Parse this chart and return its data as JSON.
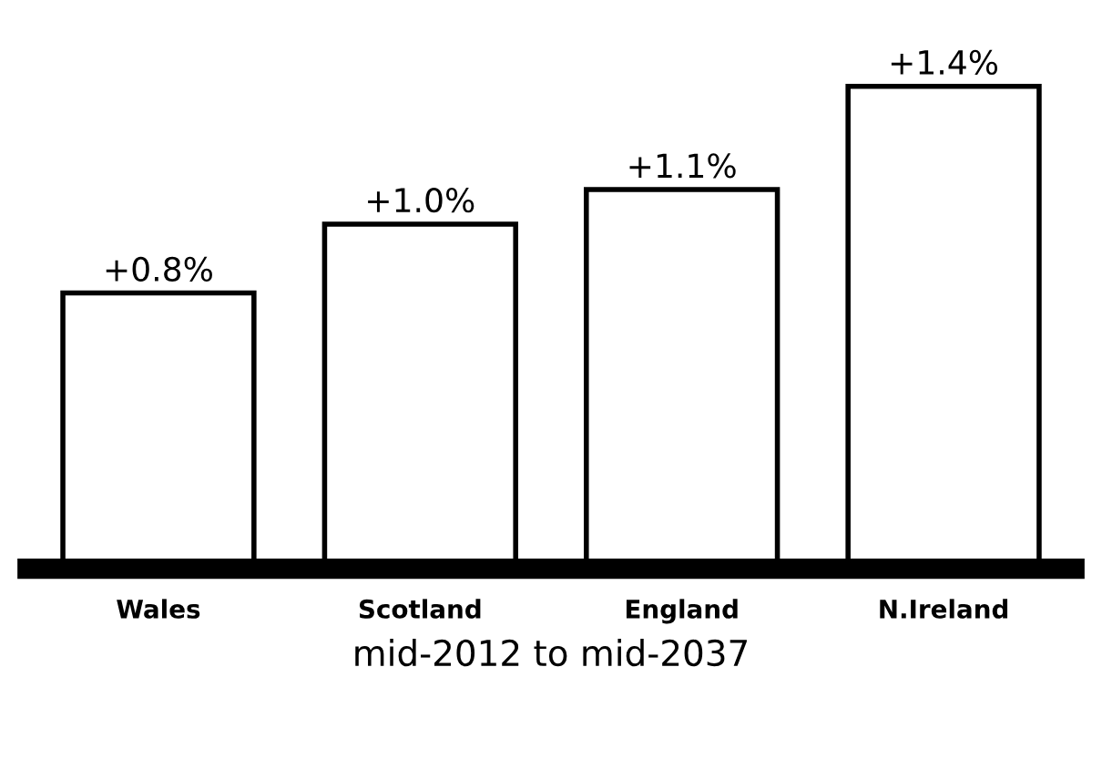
{
  "chart_data": {
    "type": "bar",
    "xlabel": "mid-2012 to mid-2037",
    "categories": [
      "Wales",
      "Scotland",
      "England",
      "N.Ireland"
    ],
    "values": [
      0.8,
      1.0,
      1.1,
      1.4
    ],
    "value_labels": [
      "+0.8%",
      "+1.0%",
      "+1.1%",
      "+1.4%"
    ],
    "color": "#ffffff"
  }
}
